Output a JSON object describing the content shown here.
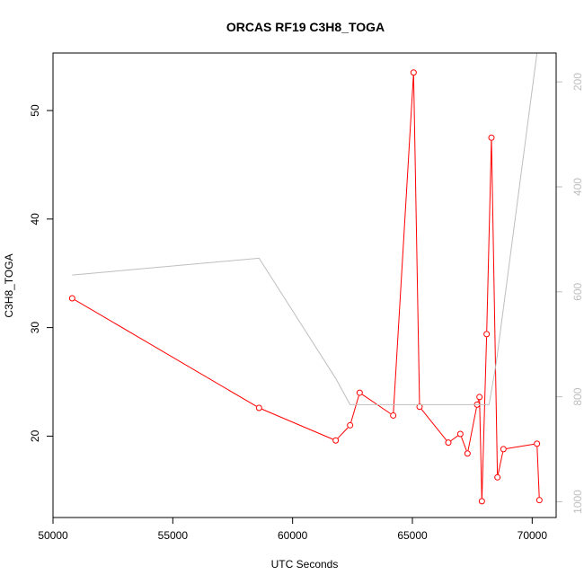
{
  "chart_data": {
    "type": "line",
    "title": "ORCAS RF19 C3H8_TOGA",
    "xlabel": "UTC Seconds",
    "ylabel": "C3H8_TOGA",
    "xlim": [
      50000,
      71000
    ],
    "ylim": [
      12.5,
      55.3
    ],
    "y2lim": [
      1030,
      145
    ],
    "y2_reversed": true,
    "x_ticks": [
      50000,
      55000,
      60000,
      65000,
      70000
    ],
    "x_tick_labels": [
      "50000",
      "55000",
      "60000",
      "65000",
      "70000"
    ],
    "y_ticks": [
      20,
      30,
      40,
      50
    ],
    "y_tick_labels": [
      "20",
      "30",
      "40",
      "50"
    ],
    "y2_ticks": [
      200,
      400,
      600,
      800,
      1000
    ],
    "y2_tick_labels": [
      "200",
      "400",
      "600",
      "800",
      "1000"
    ],
    "colors": {
      "series": "#ff0000",
      "secondary": "#bebebe"
    },
    "series": [
      {
        "axis": "left",
        "markers": "open-circle",
        "x": [
          50800,
          58600,
          61800,
          62400,
          62800,
          64200,
          65050,
          65300,
          66500,
          67000,
          67300,
          67700,
          67800,
          67900,
          68100,
          68300,
          68550,
          68800,
          70200,
          70300
        ],
        "y": [
          32.7,
          22.6,
          19.6,
          21.0,
          24.0,
          21.9,
          53.5,
          22.7,
          19.4,
          20.2,
          18.4,
          22.9,
          23.6,
          14.0,
          29.4,
          47.5,
          16.2,
          18.8,
          19.3,
          14.1
        ]
      },
      {
        "axis": "right",
        "markers": "none",
        "x": [
          50800,
          58600,
          61800,
          62400,
          67900,
          68200,
          68500,
          70200
        ],
        "y": [
          568,
          536,
          765,
          815,
          815,
          815,
          735,
          145
        ]
      }
    ]
  }
}
